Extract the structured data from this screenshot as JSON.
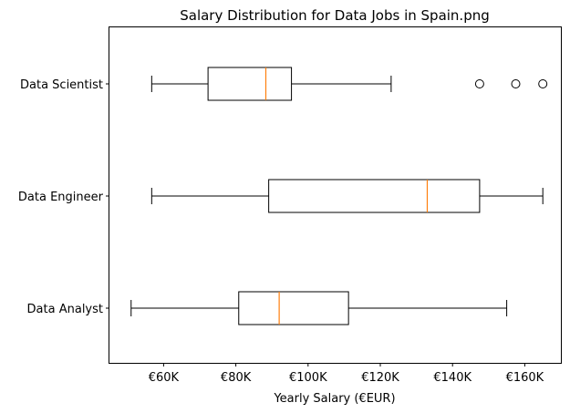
{
  "chart_data": {
    "type": "boxplot",
    "orientation": "horizontal",
    "title": "Salary Distribution for Data Jobs in Spain.png",
    "xlabel": "Yearly Salary (€EUR)",
    "ylabel": "",
    "xlim": [
      45000,
      170000
    ],
    "grid": false,
    "x_ticks": [
      {
        "value": 60000,
        "label": "€60K"
      },
      {
        "value": 80000,
        "label": "€80K"
      },
      {
        "value": 100000,
        "label": "€100K"
      },
      {
        "value": 120000,
        "label": "€120K"
      },
      {
        "value": 140000,
        "label": "€140K"
      },
      {
        "value": 160000,
        "label": "€160K"
      }
    ],
    "median_color": "#ff7f0e",
    "box_color": "#000000",
    "categories": [
      "Data Scientist",
      "Data Engineer",
      "Data Analyst"
    ],
    "boxes": [
      {
        "label": "Data Scientist",
        "whisker_low": 56700,
        "q1": 72300,
        "median": 88300,
        "q3": 95400,
        "whisker_high": 123000,
        "fliers": [
          147500,
          157500,
          165000
        ]
      },
      {
        "label": "Data Engineer",
        "whisker_low": 56700,
        "q1": 89100,
        "median": 133000,
        "q3": 147500,
        "whisker_high": 165000,
        "fliers": []
      },
      {
        "label": "Data Analyst",
        "whisker_low": 51000,
        "q1": 80800,
        "median": 92000,
        "q3": 111200,
        "whisker_high": 155000,
        "fliers": []
      }
    ]
  }
}
